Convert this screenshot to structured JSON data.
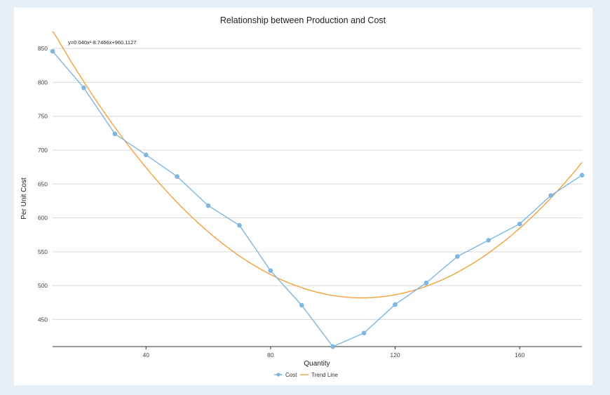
{
  "chart_data": {
    "type": "line",
    "title": "Relationship between Production and Cost",
    "xlabel": "Quantity",
    "ylabel": "Per Unit Cost",
    "xlim": [
      10,
      180
    ],
    "ylim": [
      410,
      875
    ],
    "x_ticks": [
      40,
      80,
      120,
      160
    ],
    "y_ticks": [
      450,
      500,
      550,
      600,
      650,
      700,
      750,
      800,
      850
    ],
    "grid": "horizontal",
    "legend": "bottom-center",
    "colors": {
      "cost": "#7eb6e0",
      "trend": "#f3a13b",
      "grid": "#d8d8d8",
      "axis": "#333333"
    },
    "series": [
      {
        "name": "Cost",
        "x": [
          10,
          20,
          30,
          40,
          50,
          60,
          70,
          80,
          90,
          100,
          110,
          120,
          130,
          140,
          150,
          160,
          170,
          180
        ],
        "y": [
          846,
          792,
          724,
          693,
          661,
          618,
          589,
          522,
          471,
          410,
          430,
          472,
          504,
          543,
          567,
          591,
          633,
          663
        ]
      },
      {
        "name": "Trend Line",
        "kind": "quadratic",
        "coefficients": [
          0.04,
          -8.7466,
          960.1127
        ],
        "equation": "y=0.040x²-8.7466x+960.1127"
      }
    ]
  }
}
